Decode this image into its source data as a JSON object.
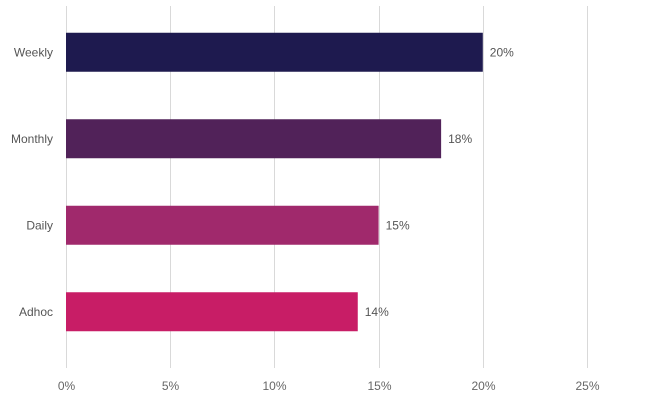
{
  "chart_data": {
    "type": "bar",
    "orientation": "horizontal",
    "categories": [
      "Weekly",
      "Monthly",
      "Daily",
      "Adhoc"
    ],
    "values": [
      20,
      18,
      15,
      14
    ],
    "value_labels": [
      "20%",
      "18%",
      "15%",
      "14%"
    ],
    "colors": [
      "#1e1a4f",
      "#512259",
      "#a0296c",
      "#c81d66"
    ],
    "x_ticks": [
      0,
      5,
      10,
      15,
      20,
      25
    ],
    "x_tick_labels": [
      "0%",
      "5%",
      "10%",
      "15%",
      "20%",
      "25%"
    ],
    "xlim": [
      0,
      25
    ],
    "grid": "vertical",
    "legend": "none",
    "title": "",
    "xlabel": "",
    "ylabel": ""
  }
}
